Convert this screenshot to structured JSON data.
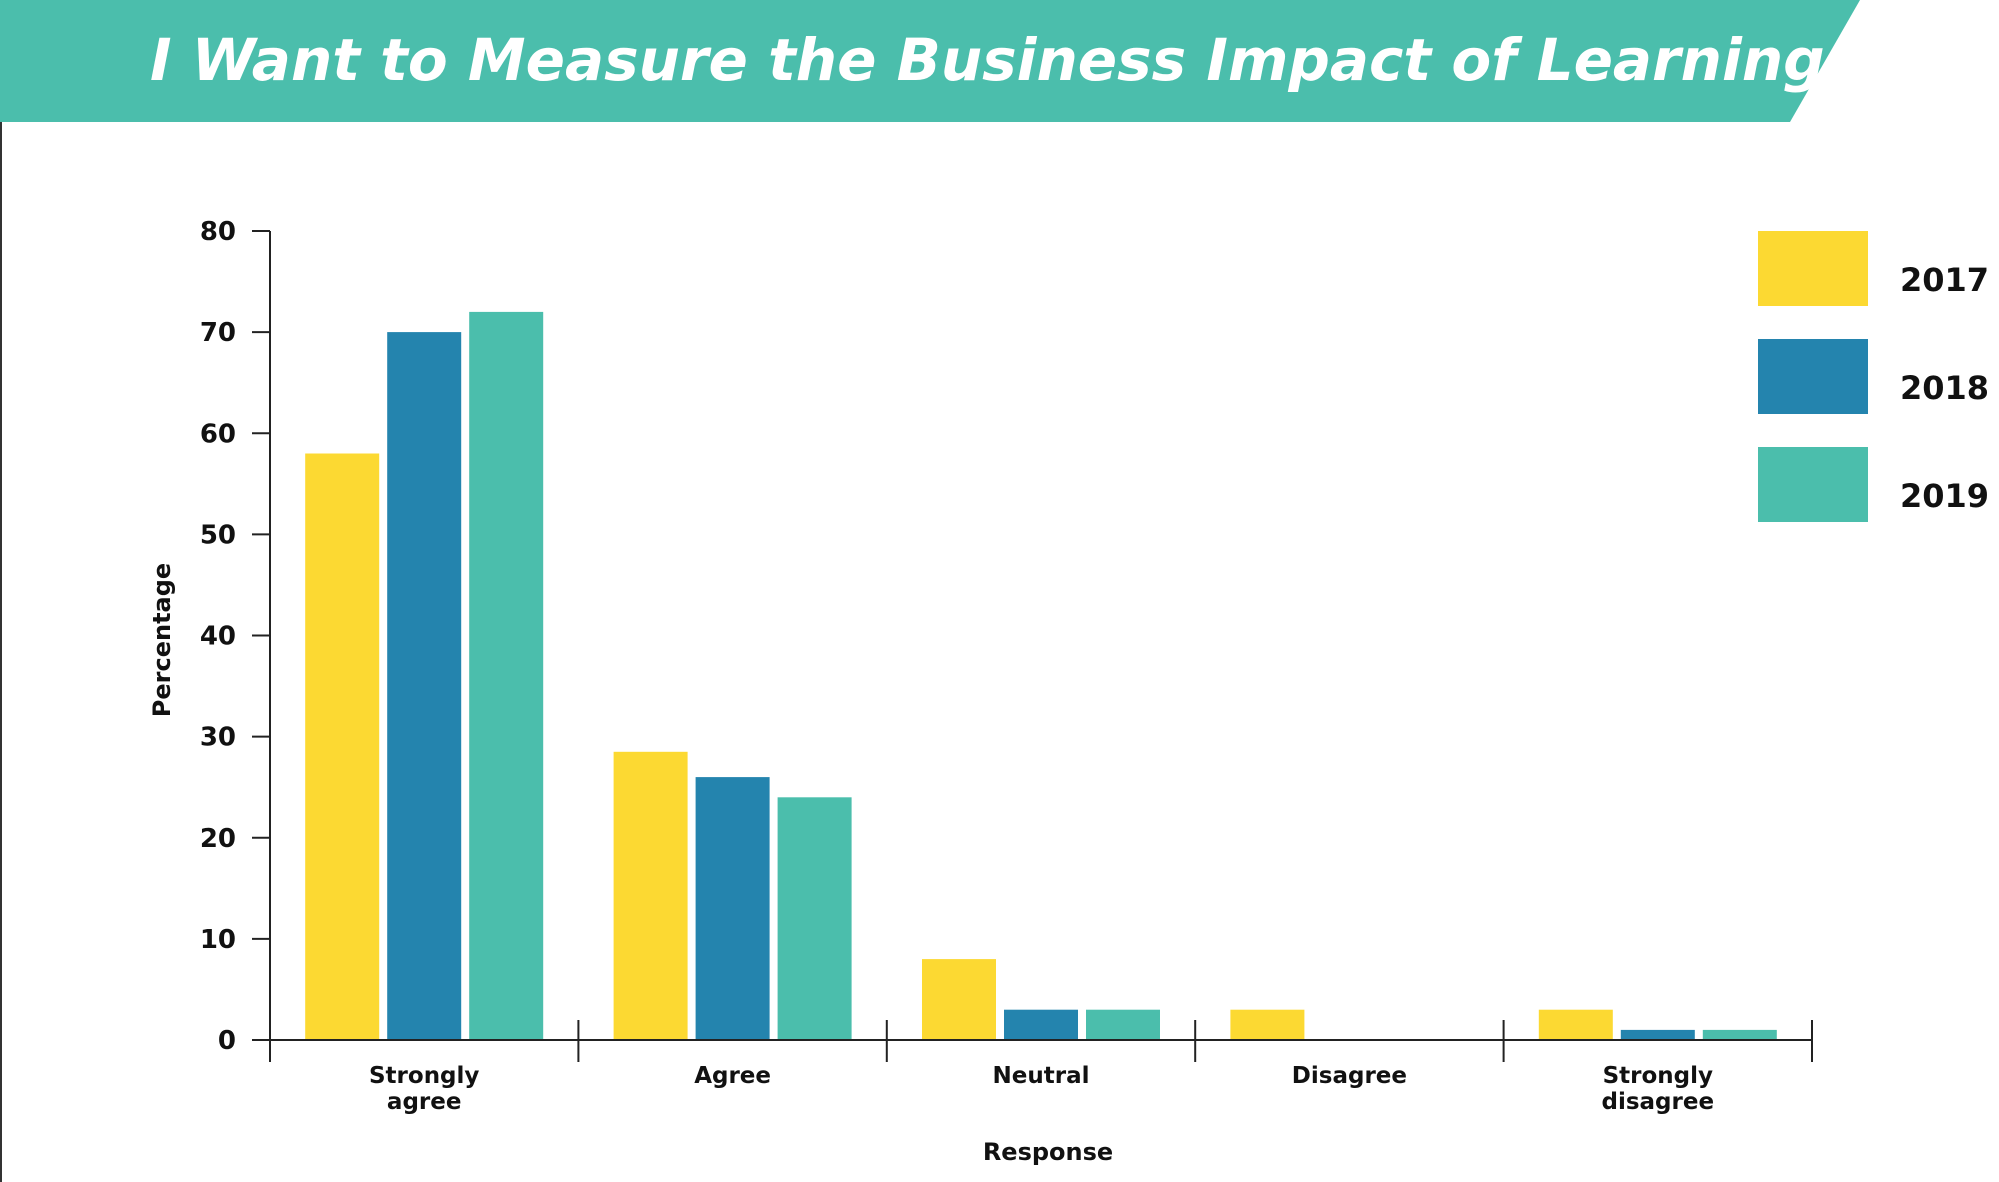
{
  "chart_data": {
    "type": "bar",
    "title": "I Want to Measure the Business Impact of Learning Programs",
    "xlabel": "Response",
    "ylabel": "Percentage",
    "ylim": [
      0,
      80
    ],
    "yticks": [
      0,
      10,
      20,
      30,
      40,
      50,
      60,
      70,
      80
    ],
    "grid": false,
    "legend_position": "top-right",
    "categories": [
      [
        "Strongly",
        "agree"
      ],
      [
        "Agree"
      ],
      [
        "Neutral"
      ],
      [
        "Disagree"
      ],
      [
        "Strongly",
        "disagree"
      ]
    ],
    "series": [
      {
        "name": "2017",
        "color": "#fcd932",
        "values": [
          58,
          28.5,
          8,
          3,
          3
        ]
      },
      {
        "name": "2018",
        "color": "#2484ae",
        "values": [
          70,
          26,
          3,
          0,
          1
        ]
      },
      {
        "name": "2019",
        "color": "#4bbeac",
        "values": [
          72,
          24,
          3,
          0,
          1
        ]
      }
    ],
    "colors": {
      "banner": "#4bbeac",
      "axis": "#222222"
    }
  }
}
